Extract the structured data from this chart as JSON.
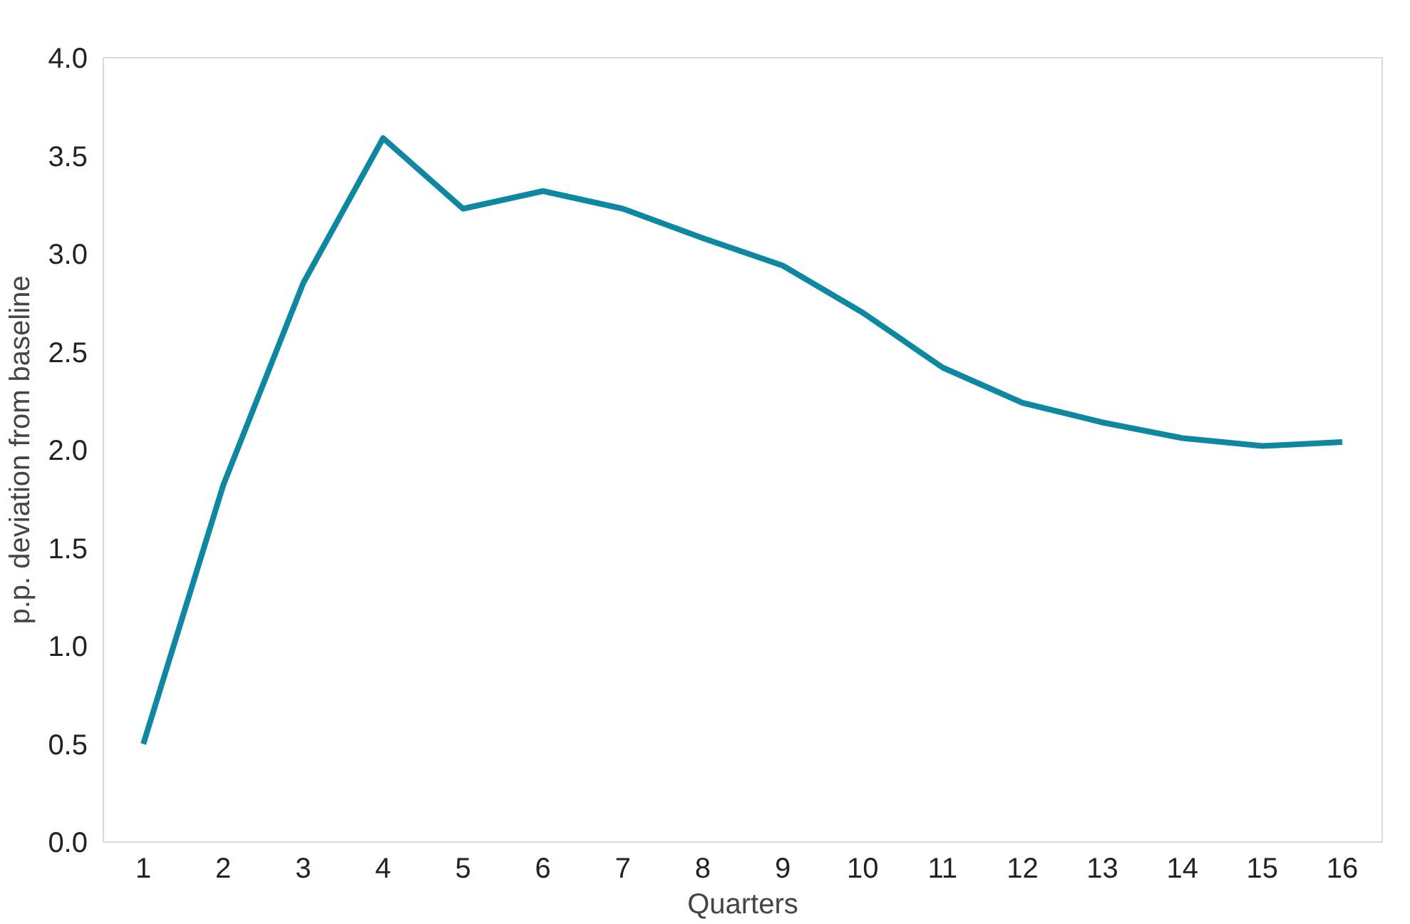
{
  "chart_data": {
    "type": "line",
    "xlabel": "Quarters",
    "ylabel": "p.p. deviation from baseline",
    "x": [
      1,
      2,
      3,
      4,
      5,
      6,
      7,
      8,
      9,
      10,
      11,
      12,
      13,
      14,
      15,
      16
    ],
    "xlim": [
      0.5,
      16.5
    ],
    "xticks": [
      1,
      2,
      3,
      4,
      5,
      6,
      7,
      8,
      9,
      10,
      11,
      12,
      13,
      14,
      15,
      16
    ],
    "series": [
      {
        "color": "#0e87a0",
        "values": [
          0.5,
          1.82,
          2.85,
          3.59,
          3.23,
          3.32,
          3.23,
          3.08,
          2.94,
          2.7,
          2.42,
          2.24,
          2.14,
          2.06,
          2.02,
          2.04
        ]
      }
    ],
    "ylim": [
      0,
      4
    ],
    "yticks": [
      {
        "value": 0,
        "label": "0.0"
      },
      {
        "value": 0.5,
        "label": "0.5"
      },
      {
        "value": 1,
        "label": "1.0"
      },
      {
        "value": 1.5,
        "label": "1.5"
      },
      {
        "value": 2,
        "label": "2.0"
      },
      {
        "value": 2.5,
        "label": "2.5"
      },
      {
        "value": 3,
        "label": "3.0"
      },
      {
        "value": 3.5,
        "label": "3.5"
      },
      {
        "value": 4,
        "label": "4.0"
      }
    ],
    "grid": false,
    "marker": "none",
    "line_style": "solid"
  }
}
